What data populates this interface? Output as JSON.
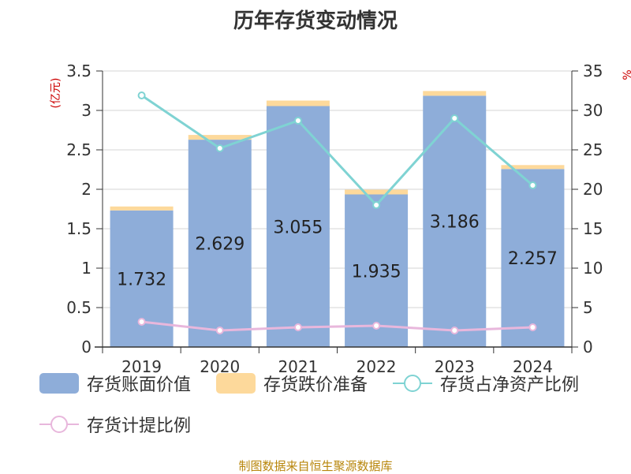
{
  "title": "历年存货变动情况",
  "source": "制图数据来自恒生聚源数据库",
  "chart_data": {
    "type": "bar",
    "categories": [
      "2019",
      "2020",
      "2021",
      "2022",
      "2023",
      "2024"
    ],
    "y_left": {
      "unit": "(亿元)",
      "ylim": [
        0,
        3.5
      ],
      "ticks": [
        "0",
        "0.5",
        "1",
        "1.5",
        "2",
        "2.5",
        "3",
        "3.5"
      ]
    },
    "y_right": {
      "unit": "%",
      "ylim": [
        0,
        35
      ],
      "ticks": [
        "0",
        "5",
        "10",
        "15",
        "20",
        "25",
        "30",
        "35"
      ]
    },
    "grid": true,
    "legend_position": "bottom",
    "series": [
      {
        "name": "存货账面价值",
        "type": "bar",
        "stack": "inv",
        "axis": "left",
        "color": "#8eadd9",
        "values": [
          1.732,
          2.629,
          3.055,
          1.935,
          3.186,
          2.257
        ],
        "labels": [
          "1.732",
          "2.629",
          "3.055",
          "1.935",
          "3.186",
          "2.257"
        ]
      },
      {
        "name": "存货跌价准备",
        "type": "bar",
        "stack": "inv",
        "axis": "left",
        "color": "#fdd99b",
        "values": [
          0.05,
          0.06,
          0.07,
          0.06,
          0.06,
          0.05
        ]
      },
      {
        "name": "存货占净资产比例",
        "type": "line",
        "axis": "right",
        "color": "#7fd3d3",
        "values": [
          31.9,
          25.2,
          28.7,
          18.0,
          29.0,
          20.5
        ]
      },
      {
        "name": "存货计提比例",
        "type": "line",
        "axis": "right",
        "color": "#e8b7dc",
        "values": [
          3.2,
          2.1,
          2.5,
          2.7,
          2.1,
          2.5
        ]
      }
    ]
  }
}
